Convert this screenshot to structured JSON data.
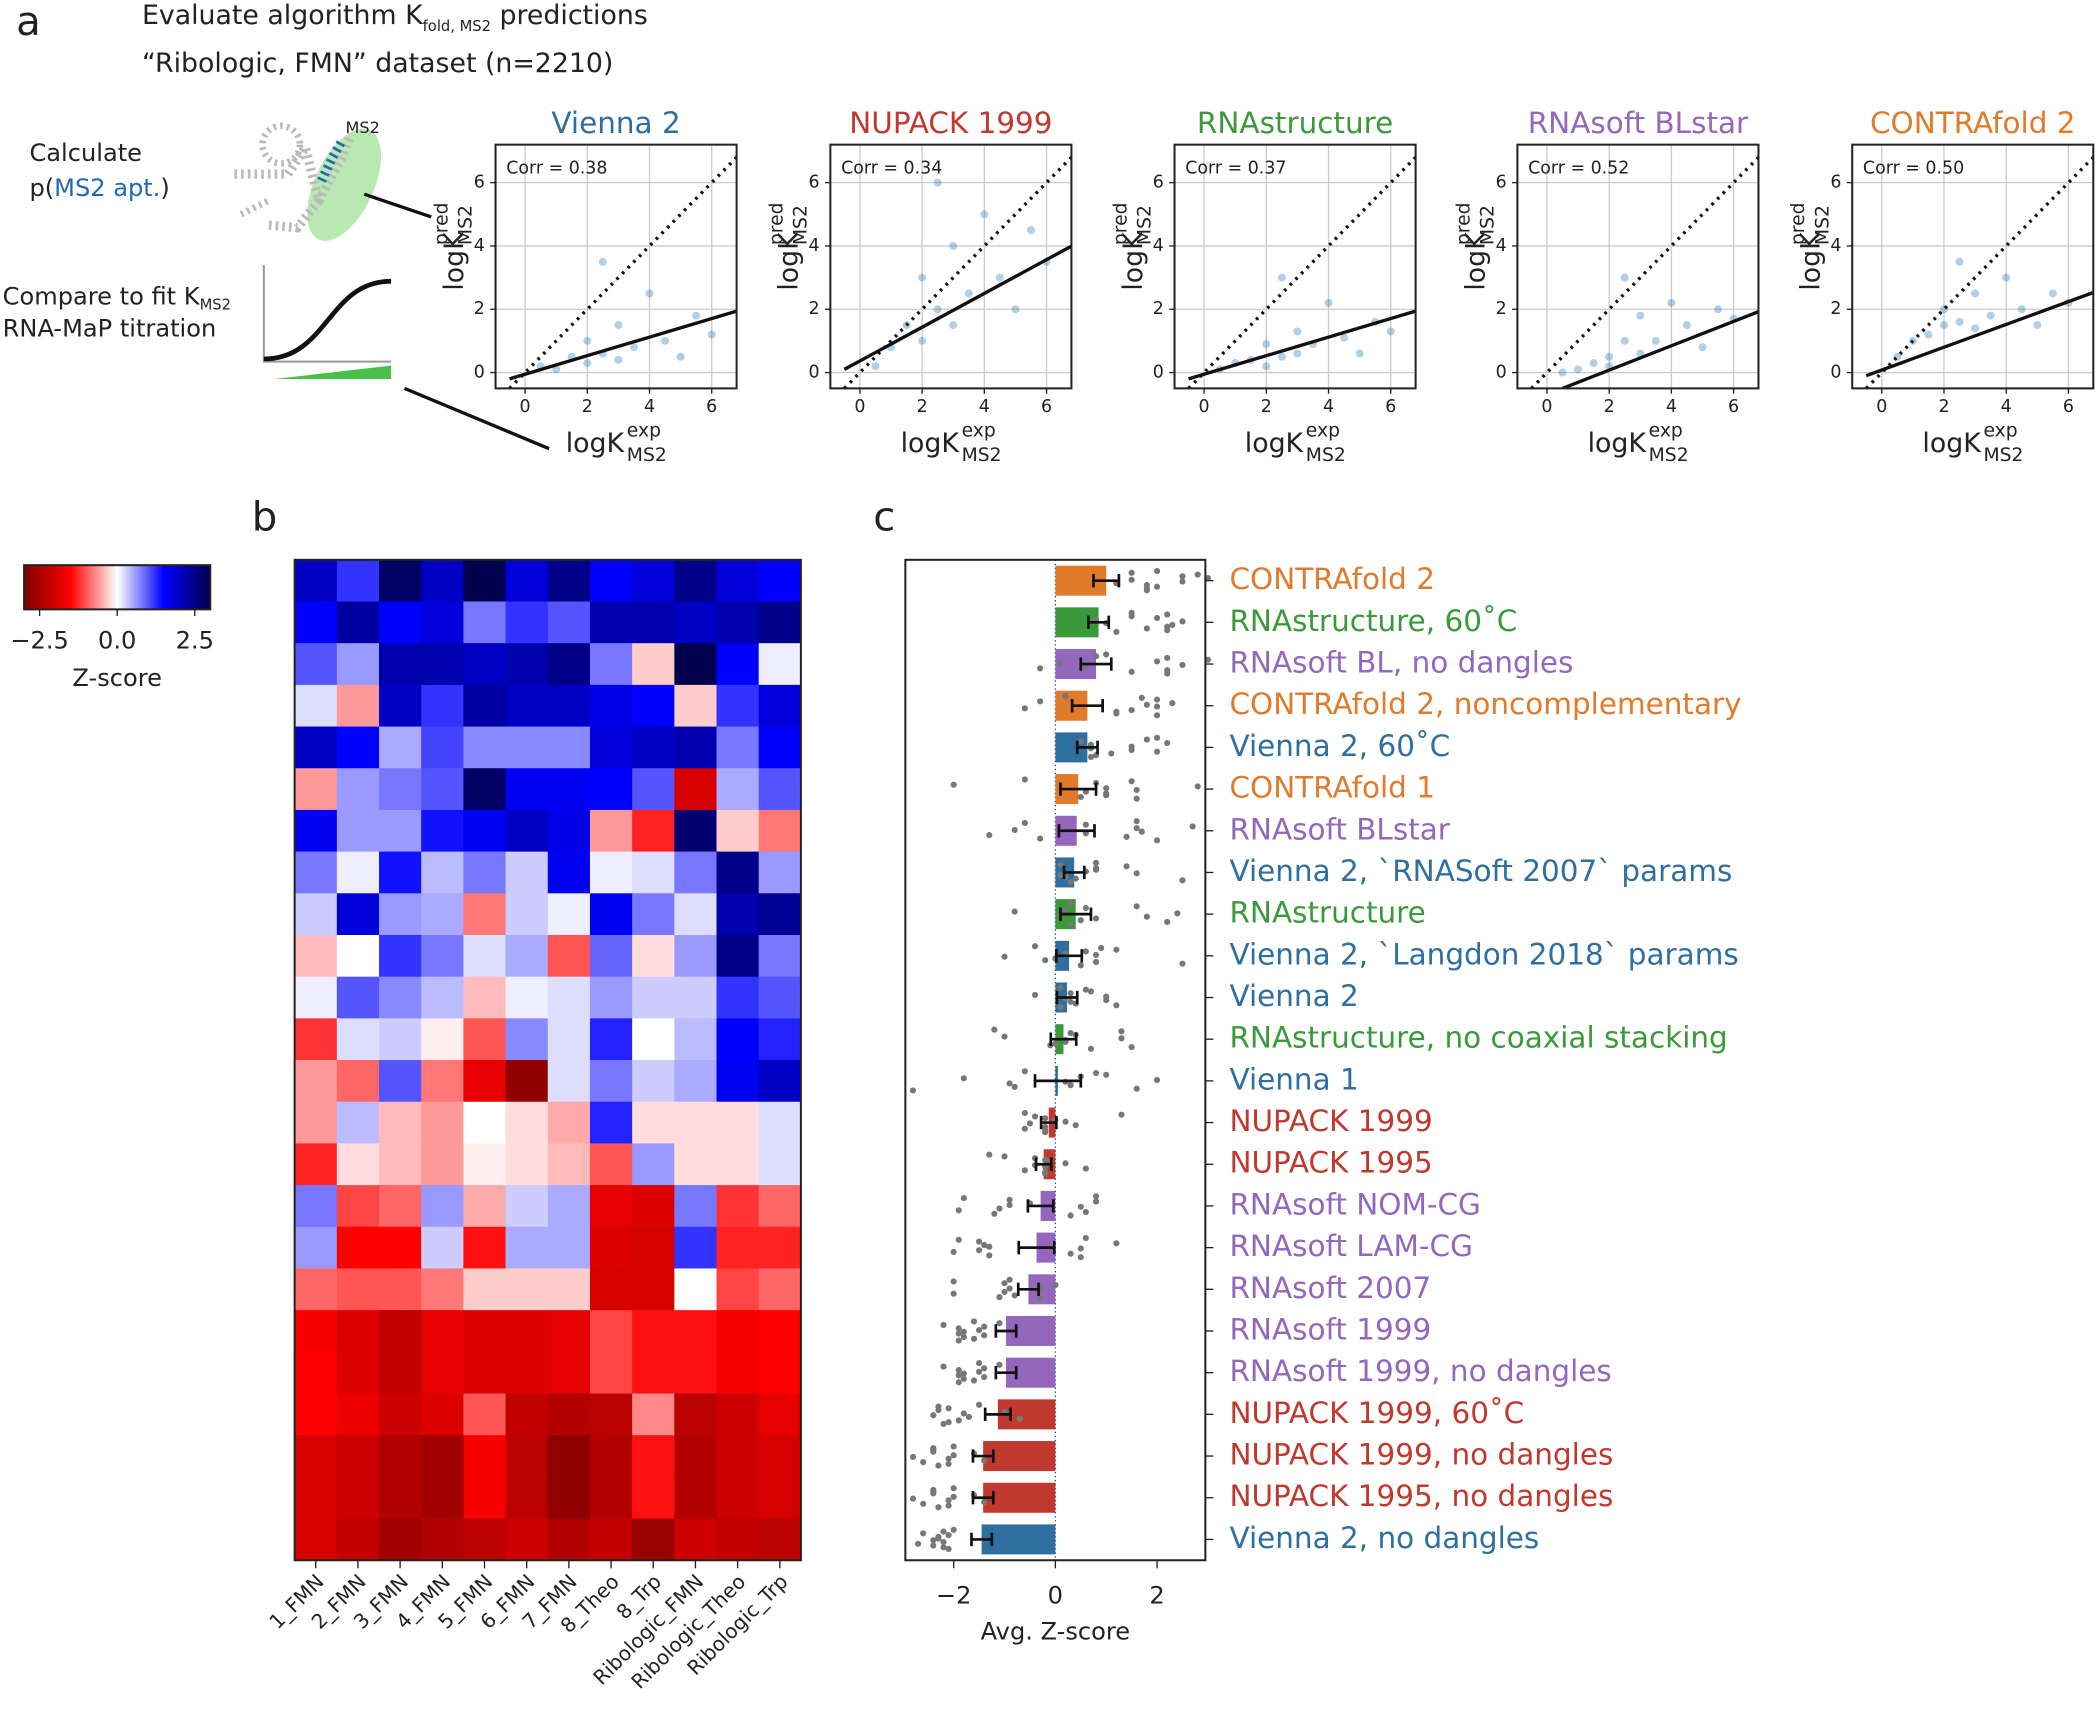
{
  "panel_labels": [
    "a",
    "b",
    "c"
  ],
  "header": {
    "title_parts": [
      "Evaluate algorithm K",
      "fold, MS2",
      " predictions"
    ],
    "subtitle": "“Ribologic, FMN” dataset (n=2210)"
  },
  "schematic": {
    "calc": "Calculate",
    "p_open": "p(",
    "apt": "MS2 apt.",
    "p_close": ")",
    "bubble": "MS2",
    "compare": "Compare to fit K",
    "compare_sub": "MS2",
    "titration": "RNA-MaP titration"
  },
  "chart_data": [
    {
      "type": "scatter",
      "title": "Vienna 2",
      "color": "#2f6fa0",
      "annotation": "Corr = 0.38",
      "point_color": "#1f77b4",
      "x_label": {
        "main": "logK",
        "sup": "exp",
        "sub": "MS2"
      },
      "y_label": {
        "main": "logK",
        "sup": "pred",
        "sub": "MS2"
      },
      "xlim": [
        -0.95,
        6.8
      ],
      "ylim": [
        -0.5,
        7.2
      ],
      "xticks": [
        0,
        2,
        4,
        6
      ],
      "yticks": [
        0,
        2,
        4,
        6
      ],
      "grid": true,
      "points": {
        "x": [
          0.5,
          1,
          1.5,
          2,
          2,
          2.5,
          3,
          3,
          3.5,
          4,
          4.5,
          5,
          5.5,
          6,
          2.5
        ],
        "y": [
          0.2,
          0.1,
          0.5,
          0.3,
          1,
          0.6,
          0.4,
          1.5,
          0.8,
          2.5,
          1,
          0.5,
          1.8,
          1.2,
          3.5
        ]
      },
      "fit_line": {
        "x": [
          -0.5,
          7
        ],
        "y": [
          -0.2,
          2.0
        ]
      }
    },
    {
      "type": "scatter",
      "title": "NUPACK 1999",
      "color": "#c0392f",
      "annotation": "Corr = 0.34",
      "point_color": "#1f77b4",
      "x_label": {
        "main": "logK",
        "sup": "exp",
        "sub": "MS2"
      },
      "y_label": {
        "main": "logK",
        "sup": "pred",
        "sub": "MS2"
      },
      "xlim": [
        -0.95,
        6.8
      ],
      "ylim": [
        -0.5,
        7.2
      ],
      "xticks": [
        0,
        2,
        4,
        6
      ],
      "yticks": [
        0,
        2,
        4,
        6
      ],
      "grid": true,
      "points": {
        "x": [
          0.5,
          1,
          1.5,
          2,
          2,
          2.5,
          3,
          3,
          3.5,
          4,
          4.5,
          5,
          5.5,
          6,
          2.5
        ],
        "y": [
          0.2,
          0.8,
          1.5,
          1,
          3,
          2,
          1.5,
          4,
          2.5,
          5,
          3,
          2,
          4.5,
          3.5,
          6
        ]
      },
      "fit_line": {
        "x": [
          -0.5,
          7
        ],
        "y": [
          0.1,
          4.1
        ]
      }
    },
    {
      "type": "scatter",
      "title": "RNAstructure",
      "color": "#3a9a3a",
      "annotation": "Corr = 0.37",
      "point_color": "#1f77b4",
      "x_label": {
        "main": "logK",
        "sup": "exp",
        "sub": "MS2"
      },
      "y_label": {
        "main": "logK",
        "sup": "pred",
        "sub": "MS2"
      },
      "xlim": [
        -0.95,
        6.8
      ],
      "ylim": [
        -0.5,
        7.2
      ],
      "xticks": [
        0,
        2,
        4,
        6
      ],
      "yticks": [
        0,
        2,
        4,
        6
      ],
      "grid": true,
      "points": {
        "x": [
          0.5,
          1,
          1.5,
          2,
          2,
          2.5,
          3,
          3,
          3.5,
          4,
          4.5,
          5,
          5.5,
          6,
          2.5
        ],
        "y": [
          0.1,
          0.3,
          0.4,
          0.2,
          0.9,
          0.5,
          0.6,
          1.3,
          0.9,
          2.2,
          1.1,
          0.6,
          1.6,
          1.3,
          3
        ]
      },
      "fit_line": {
        "x": [
          -0.5,
          7
        ],
        "y": [
          -0.2,
          2.0
        ]
      }
    },
    {
      "type": "scatter",
      "title": "RNAsoft BLstar",
      "color": "#9467bd",
      "annotation": "Corr = 0.52",
      "point_color": "#1f77b4",
      "x_label": {
        "main": "logK",
        "sup": "exp",
        "sub": "MS2"
      },
      "y_label": {
        "main": "logK",
        "sup": "pred",
        "sub": "MS2"
      },
      "xlim": [
        -0.95,
        6.8
      ],
      "ylim": [
        -0.5,
        7.2
      ],
      "xticks": [
        0,
        2,
        4,
        6
      ],
      "yticks": [
        0,
        2,
        4,
        6
      ],
      "grid": true,
      "points": {
        "x": [
          0.5,
          1,
          1.5,
          2,
          2,
          2.5,
          3,
          3,
          3.5,
          4,
          4.5,
          5,
          5.5,
          6,
          2.5
        ],
        "y": [
          0,
          0.1,
          0.3,
          0.5,
          0.2,
          1,
          0.6,
          1.8,
          1,
          2.2,
          1.5,
          0.8,
          2,
          1.7,
          3
        ]
      },
      "fit_line": {
        "x": [
          0.5,
          7
        ],
        "y": [
          -0.5,
          2.0
        ]
      }
    },
    {
      "type": "scatter",
      "title": "CONTRAfold 2",
      "color": "#e07b2b",
      "annotation": "Corr = 0.50",
      "point_color": "#1f77b4",
      "x_label": {
        "main": "logK",
        "sup": "exp",
        "sub": "MS2"
      },
      "y_label": {
        "main": "logK",
        "sup": "pred",
        "sub": "MS2"
      },
      "xlim": [
        -0.95,
        6.8
      ],
      "ylim": [
        -0.5,
        7.2
      ],
      "xticks": [
        0,
        2,
        4,
        6
      ],
      "yticks": [
        0,
        2,
        4,
        6
      ],
      "grid": true,
      "points": {
        "x": [
          0.5,
          1,
          1.5,
          2,
          2,
          2.5,
          3,
          3,
          3.5,
          4,
          4.5,
          5,
          5.5,
          6,
          2.5
        ],
        "y": [
          0.5,
          1,
          1.2,
          1.5,
          2,
          1.6,
          1.4,
          2.5,
          1.8,
          3,
          2,
          1.5,
          2.5,
          2.2,
          3.5
        ]
      },
      "fit_line": {
        "x": [
          -0.5,
          7
        ],
        "y": [
          -0.1,
          2.6
        ]
      }
    },
    {
      "type": "heatmap",
      "colorbar_label": "Z-score",
      "clim": [
        -3,
        3
      ],
      "colorbar_ticks": [
        {
          "value": -2.5,
          "label": "−2.5"
        },
        {
          "value": 0,
          "label": "0.0"
        },
        {
          "value": 2.5,
          "label": "2.5"
        }
      ],
      "columns": [
        "1_FMN",
        "2_FMN",
        "3_FMN",
        "4_FMN",
        "5_FMN",
        "6_FMN",
        "7_FMN",
        "8_Theo",
        "8_Trp",
        "Ribologic_FMN",
        "Ribologic_Theo",
        "Ribologic_Trp"
      ],
      "values": [
        [
          2,
          1.2,
          2.8,
          2,
          3,
          1.8,
          2.5,
          1.5,
          1.8,
          2.5,
          1.8,
          1.5
        ],
        [
          1.5,
          2.3,
          1.5,
          1.8,
          0.8,
          1.2,
          1,
          2.2,
          2.2,
          2,
          2.2,
          2.5
        ],
        [
          1,
          0.6,
          2.2,
          2.2,
          2,
          2.2,
          2.5,
          0.8,
          -0.3,
          3,
          1.5,
          0.1
        ],
        [
          0.2,
          -0.6,
          2,
          1.2,
          2.3,
          2,
          2,
          1.7,
          1.5,
          -0.3,
          1.2,
          1.8
        ],
        [
          2,
          1.5,
          0.5,
          1.1,
          0.7,
          0.7,
          0.7,
          1.8,
          2,
          2.2,
          0.8,
          1.5
        ],
        [
          -0.6,
          0.6,
          0.8,
          1,
          2.8,
          1.6,
          1.6,
          1.5,
          1,
          -2,
          0.5,
          1
        ],
        [
          1.6,
          0.6,
          0.6,
          1.4,
          1.6,
          2,
          1.7,
          -0.6,
          -1.3,
          2.7,
          -0.3,
          -0.8
        ],
        [
          0.8,
          0.1,
          1.4,
          0.4,
          0.8,
          0.3,
          1.6,
          0.1,
          0.2,
          0.8,
          2.5,
          0.6
        ],
        [
          0.3,
          1.8,
          0.6,
          0.5,
          -0.8,
          0.3,
          0.1,
          1.6,
          0.8,
          0.2,
          2.2,
          2.4
        ],
        [
          -0.4,
          0,
          1.2,
          0.8,
          0.2,
          0.5,
          -1,
          0.9,
          -0.2,
          0.6,
          2.5,
          0.8
        ],
        [
          0.1,
          1,
          0.7,
          0.4,
          -0.4,
          0.1,
          0.2,
          0.6,
          0.3,
          0.3,
          1.2,
          1
        ],
        [
          -1.2,
          0.2,
          0.3,
          -0.1,
          -1,
          0.7,
          0.2,
          1.3,
          0,
          0.4,
          1.5,
          1.3
        ],
        [
          -0.6,
          -0.9,
          1,
          -0.8,
          -1.8,
          -2.8,
          0.2,
          0.8,
          0.3,
          0.5,
          1.6,
          2
        ],
        [
          -0.6,
          0.4,
          -0.4,
          -0.6,
          0,
          -0.2,
          -0.5,
          1.3,
          -0.2,
          -0.2,
          -0.2,
          0.2
        ],
        [
          -1.3,
          -0.2,
          -0.4,
          -0.6,
          -0.1,
          -0.2,
          -0.4,
          -1,
          0.6,
          -0.2,
          -0.2,
          0.2
        ],
        [
          0.8,
          -1.1,
          -0.9,
          0.6,
          -0.5,
          0.3,
          0.5,
          -1.8,
          -1.9,
          0.8,
          -1.2,
          -0.9
        ],
        [
          0.6,
          -1.5,
          -1.5,
          0.3,
          -1.4,
          0.5,
          0.5,
          -1.9,
          -2,
          1.2,
          -1.3,
          -1.3
        ],
        [
          -0.9,
          -1,
          -1,
          -0.8,
          -0.3,
          -0.3,
          -0.3,
          -2,
          -2,
          0,
          -1.1,
          -0.9
        ],
        [
          -1.6,
          -1.9,
          -2.2,
          -1.8,
          -1.9,
          -1.9,
          -1.8,
          -1.1,
          -1.4,
          -1.4,
          -1.6,
          -1.5
        ],
        [
          -1.5,
          -1.9,
          -2.2,
          -1.8,
          -1.9,
          -1.9,
          -1.8,
          -1.1,
          -1.4,
          -1.4,
          -1.6,
          -1.5
        ],
        [
          -1.5,
          -1.7,
          -2.1,
          -1.9,
          -1,
          -2.2,
          -2.4,
          -2.3,
          -0.7,
          -2.3,
          -2.1,
          -1.8
        ],
        [
          -2,
          -2.1,
          -2.4,
          -2.6,
          -1.6,
          -2.3,
          -2.8,
          -2.4,
          -1.4,
          -2.4,
          -2.1,
          -2
        ],
        [
          -2,
          -2.1,
          -2.4,
          -2.6,
          -1.6,
          -2.3,
          -2.8,
          -2.4,
          -1.4,
          -2.4,
          -2.1,
          -2
        ],
        [
          -2,
          -2.2,
          -2.6,
          -2.4,
          -2.3,
          -2.1,
          -2.4,
          -2.2,
          -2.7,
          -2.1,
          -2.2,
          -2.3
        ]
      ]
    },
    {
      "type": "hbar",
      "x_label": "Avg. Z-score",
      "xlim": [
        -2.95,
        2.95
      ],
      "xticks": [
        {
          "value": -2,
          "label": "−2"
        },
        0,
        2
      ],
      "categories": [
        "CONTRAfold 2",
        "RNAstructure, 60˚C",
        "RNAsoft BL, no dangles",
        "CONTRAfold 2, noncomplementary",
        "Vienna 2, 60˚C",
        "CONTRAfold 1",
        "RNAsoft BLstar",
        "Vienna 2, `RNASoft 2007` params",
        "RNAstructure",
        "Vienna 2, `Langdon 2018` params",
        "Vienna 2",
        "RNAstructure, no coaxial stacking",
        "Vienna 1",
        "NUPACK 1999",
        "NUPACK 1995",
        "RNAsoft NOM-CG",
        "RNAsoft LAM-CG",
        "RNAsoft 2007",
        "RNAsoft 1999",
        "RNAsoft 1999, no dangles",
        "NUPACK 1999, 60˚C",
        "NUPACK 1999, no dangles",
        "NUPACK 1995, no dangles",
        "Vienna 2, no dangles"
      ],
      "colors": [
        "#e07b2b",
        "#3a9a3a",
        "#9467bd",
        "#e07b2b",
        "#2f6fa0",
        "#e07b2b",
        "#9467bd",
        "#2f6fa0",
        "#3a9a3a",
        "#2f6fa0",
        "#2f6fa0",
        "#3a9a3a",
        "#2f6fa0",
        "#c0392f",
        "#c0392f",
        "#9467bd",
        "#9467bd",
        "#9467bd",
        "#9467bd",
        "#9467bd",
        "#c0392f",
        "#c0392f",
        "#c0392f",
        "#2f6fa0"
      ],
      "values": [
        1.0,
        0.85,
        0.8,
        0.63,
        0.63,
        0.45,
        0.42,
        0.37,
        0.4,
        0.27,
        0.23,
        0.16,
        0.05,
        -0.13,
        -0.23,
        -0.29,
        -0.37,
        -0.53,
        -0.97,
        -0.97,
        -1.13,
        -1.42,
        -1.42,
        -1.45
      ],
      "errors": [
        0.25,
        0.2,
        0.3,
        0.3,
        0.2,
        0.35,
        0.35,
        0.2,
        0.3,
        0.25,
        0.2,
        0.25,
        0.45,
        0.15,
        0.15,
        0.25,
        0.35,
        0.2,
        0.2,
        0.2,
        0.25,
        0.2,
        0.2,
        0.2
      ]
    }
  ]
}
